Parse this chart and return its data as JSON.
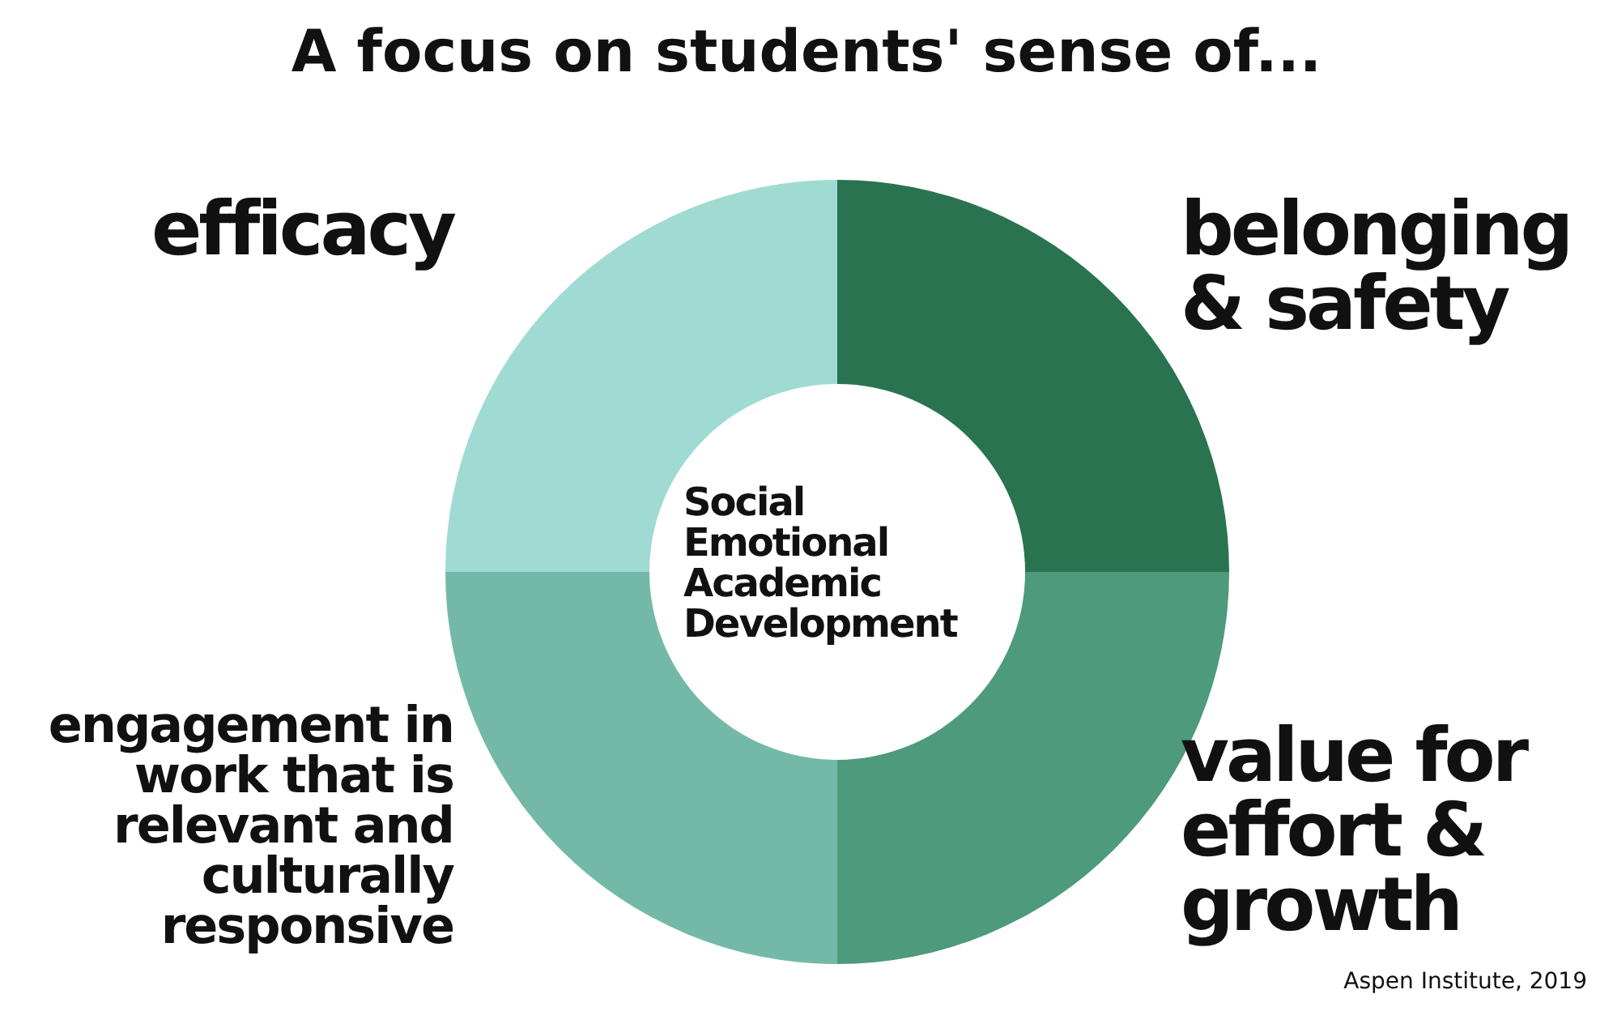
{
  "chart_data": {
    "type": "donut",
    "title": "A focus on students' sense of...",
    "categories": [
      "belonging & safety",
      "value for effort & growth",
      "engagement in work that is relevant and culturally responsive",
      "efficacy"
    ],
    "values": [
      25,
      25,
      25,
      25
    ],
    "colors": [
      "#2a7350",
      "#4e9a7c",
      "#74b9a7",
      "#9fdbd2"
    ],
    "annotations": [
      "Social Emotional Academic Development",
      "Aspen Institute, 2019"
    ]
  }
}
